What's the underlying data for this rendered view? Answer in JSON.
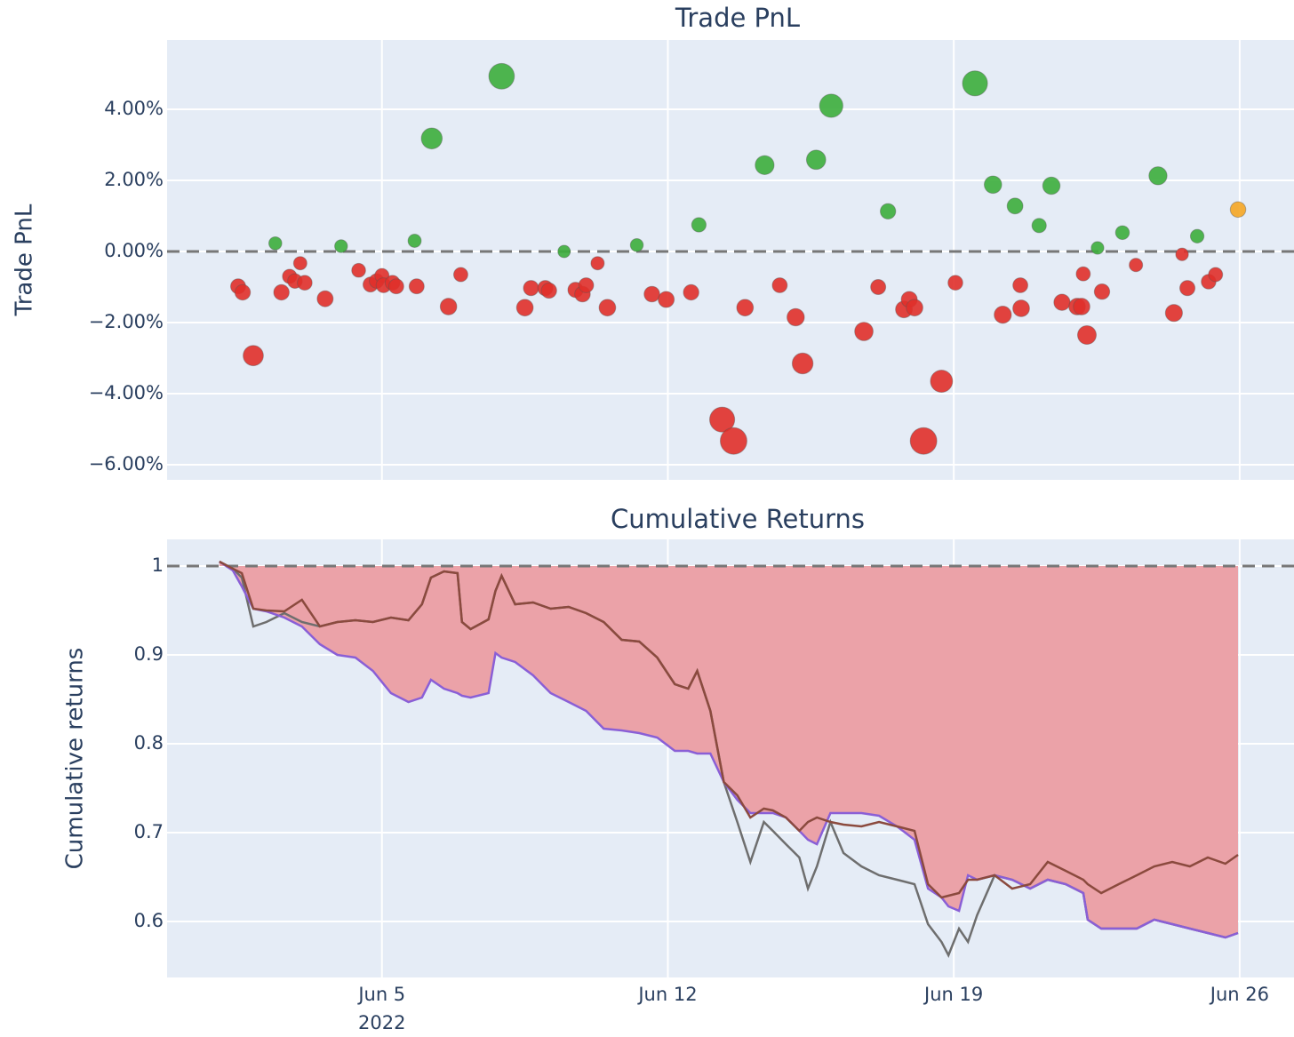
{
  "chart_data": [
    {
      "type": "scatter",
      "title": "Trade PnL",
      "ylabel": "Trade PnL",
      "xlim": [
        -0.26,
        27.33
      ],
      "xticks": [
        {
          "value": 5,
          "label": "Jun 5"
        },
        {
          "value": 12,
          "label": "Jun 12"
        },
        {
          "value": 19,
          "label": "Jun 19"
        },
        {
          "value": 26,
          "label": "Jun 26"
        }
      ],
      "ylim": [
        -6.425,
        5.95
      ],
      "yticks": [
        {
          "value": -6,
          "label": "−6.00%"
        },
        {
          "value": -4,
          "label": "−4.00%"
        },
        {
          "value": -2,
          "label": "−2.00%"
        },
        {
          "value": 0,
          "label": "0.00%"
        },
        {
          "value": 2,
          "label": "2.00%"
        },
        {
          "value": 4,
          "label": "4.00%"
        }
      ],
      "grid": true,
      "reference_line": 0,
      "series": [
        {
          "color": "#e0302a",
          "x": [
            1.48,
            1.59,
            1.85,
            2.54,
            2.74,
            2.87,
            3.0,
            3.11,
            3.61,
            4.43,
            4.72,
            4.87,
            5.0,
            5.04,
            5.26,
            5.35,
            5.85,
            6.63,
            6.93,
            8.5,
            8.65,
            9.0,
            9.09,
            9.74,
            9.91,
            10.0,
            10.28,
            10.52,
            11.61,
            11.96,
            12.57,
            13.33,
            13.61,
            13.89,
            14.74,
            15.13,
            15.3,
            16.8,
            17.15,
            17.78,
            17.91,
            18.04,
            18.26,
            18.7,
            19.04,
            20.2,
            20.63,
            20.65,
            21.65,
            22.02,
            22.13,
            22.17,
            22.26,
            22.63,
            23.46,
            24.39,
            24.59,
            24.72,
            25.24,
            25.41
          ],
          "values": [
            -0.98,
            -1.15,
            -2.93,
            -1.15,
            -0.7,
            -0.83,
            -0.33,
            -0.88,
            -1.33,
            -0.53,
            -0.93,
            -0.83,
            -0.68,
            -0.95,
            -0.88,
            -0.98,
            -0.98,
            -1.55,
            -0.65,
            -1.58,
            -1.03,
            -1.03,
            -1.1,
            -1.08,
            -1.2,
            -0.95,
            -0.33,
            -1.58,
            -1.2,
            -1.35,
            -1.15,
            -4.73,
            -5.33,
            -1.58,
            -0.95,
            -1.85,
            -3.15,
            -2.25,
            -1.0,
            -1.63,
            -1.35,
            -1.58,
            -5.33,
            -3.65,
            -0.88,
            -1.78,
            -0.95,
            -1.6,
            -1.43,
            -1.55,
            -1.55,
            -0.63,
            -2.35,
            -1.13,
            -0.38,
            -1.73,
            -0.08,
            -1.03,
            -0.85,
            -0.65
          ]
        },
        {
          "color": "#3cae3c",
          "x": [
            2.39,
            4.0,
            5.8,
            6.22,
            7.93,
            9.46,
            11.24,
            12.76,
            14.37,
            15.63,
            16.0,
            17.39,
            19.52,
            19.96,
            20.5,
            21.09,
            21.39,
            22.52,
            23.13,
            24.0,
            24.96
          ],
          "values": [
            0.23,
            0.15,
            0.3,
            3.18,
            4.93,
            0.0,
            0.18,
            0.75,
            2.43,
            2.58,
            4.1,
            1.13,
            4.73,
            1.88,
            1.28,
            0.73,
            1.85,
            0.1,
            0.53,
            2.13,
            0.43
          ]
        },
        {
          "color": "#f5a623",
          "x": [
            25.96
          ],
          "values": [
            1.18
          ]
        }
      ]
    },
    {
      "type": "line",
      "title": "Cumulative Returns",
      "ylabel": "Cumulative returns",
      "year_label": "2022",
      "xlim": [
        -0.26,
        27.33
      ],
      "xticks": [
        {
          "value": 5,
          "label": "Jun 5"
        },
        {
          "value": 12,
          "label": "Jun 12"
        },
        {
          "value": 19,
          "label": "Jun 19"
        },
        {
          "value": 26,
          "label": "Jun 26"
        }
      ],
      "ylim": [
        0.537,
        1.03
      ],
      "yticks": [
        0.6,
        0.7,
        0.8,
        0.9,
        1
      ],
      "grid": true,
      "reference_line": 1,
      "x": [
        1.02,
        1.35,
        1.57,
        1.85,
        2.17,
        2.61,
        3.04,
        3.48,
        3.91,
        4.35,
        4.78,
        5.22,
        5.65,
        5.98,
        6.2,
        6.52,
        6.85,
        6.96,
        7.17,
        7.61,
        7.78,
        7.93,
        8.26,
        8.7,
        9.13,
        9.57,
        10.0,
        10.43,
        10.87,
        11.3,
        11.74,
        12.17,
        12.5,
        12.72,
        13.04,
        13.37,
        13.7,
        14.02,
        14.35,
        14.57,
        14.89,
        15.22,
        15.43,
        15.65,
        15.98,
        16.3,
        16.74,
        17.17,
        17.61,
        18.04,
        18.37,
        18.7,
        18.87,
        19.13,
        19.35,
        19.57,
        20.0,
        20.43,
        20.87,
        21.3,
        21.74,
        22.17,
        22.28,
        22.61,
        23.04,
        23.48,
        23.91,
        24.35,
        24.78,
        25.22,
        25.65,
        25.96
      ],
      "series": [
        {
          "color": "#6e6e6e",
          "values": [
            1.005,
            0.997,
            0.987,
            0.932,
            0.937,
            0.947,
            0.937,
            0.932,
            0.937,
            0.939,
            0.937,
            0.942,
            0.939,
            0.957,
            0.987,
            0.994,
            0.992,
            0.937,
            0.929,
            0.94,
            0.972,
            0.989,
            0.957,
            0.959,
            0.952,
            0.954,
            0.947,
            0.937,
            0.917,
            0.915,
            0.897,
            0.867,
            0.862,
            0.882,
            0.837,
            0.757,
            0.712,
            0.667,
            0.712,
            0.702,
            0.687,
            0.672,
            0.637,
            0.662,
            0.712,
            0.677,
            0.662,
            0.652,
            0.647,
            0.642,
            0.597,
            0.577,
            0.562,
            0.592,
            0.577,
            0.607,
            0.652,
            0.647,
            0.637,
            0.647,
            0.642,
            0.632,
            0.602,
            0.592,
            0.592,
            0.592,
            0.602,
            0.597,
            0.592,
            0.587,
            0.582,
            0.587
          ]
        },
        {
          "color": "#8a5fd6",
          "fill_color": "#eba2a8",
          "values": [
            1.005,
            0.995,
            0.977,
            0.952,
            0.949,
            0.942,
            0.932,
            0.912,
            0.9,
            0.897,
            0.882,
            0.857,
            0.847,
            0.852,
            0.872,
            0.862,
            0.857,
            0.854,
            0.852,
            0.857,
            0.902,
            0.897,
            0.892,
            0.877,
            0.857,
            0.847,
            0.837,
            0.817,
            0.815,
            0.812,
            0.807,
            0.792,
            0.792,
            0.789,
            0.789,
            0.757,
            0.737,
            0.722,
            0.722,
            0.722,
            0.717,
            0.702,
            0.692,
            0.687,
            0.722,
            0.722,
            0.722,
            0.719,
            0.707,
            0.692,
            0.637,
            0.627,
            0.617,
            0.612,
            0.652,
            0.647,
            0.652,
            0.647,
            0.637,
            0.647,
            0.642,
            0.632,
            0.602,
            0.592,
            0.592,
            0.592,
            0.602,
            0.597,
            0.592,
            0.587,
            0.582,
            0.587
          ]
        },
        {
          "color": "#8b4a3e",
          "values": [
            1.005,
            0.997,
            0.992,
            0.952,
            0.95,
            0.949,
            0.962,
            0.932,
            0.937,
            0.939,
            0.937,
            0.942,
            0.939,
            0.957,
            0.987,
            0.994,
            0.992,
            0.937,
            0.929,
            0.94,
            0.972,
            0.989,
            0.957,
            0.959,
            0.952,
            0.954,
            0.947,
            0.937,
            0.917,
            0.915,
            0.897,
            0.867,
            0.862,
            0.882,
            0.837,
            0.757,
            0.742,
            0.717,
            0.727,
            0.725,
            0.717,
            0.702,
            0.712,
            0.717,
            0.712,
            0.709,
            0.707,
            0.712,
            0.707,
            0.702,
            0.642,
            0.627,
            0.629,
            0.632,
            0.647,
            0.647,
            0.652,
            0.637,
            0.642,
            0.667,
            0.657,
            0.647,
            0.642,
            0.632,
            0.642,
            0.652,
            0.662,
            0.667,
            0.662,
            0.672,
            0.665,
            0.675
          ]
        }
      ]
    }
  ]
}
